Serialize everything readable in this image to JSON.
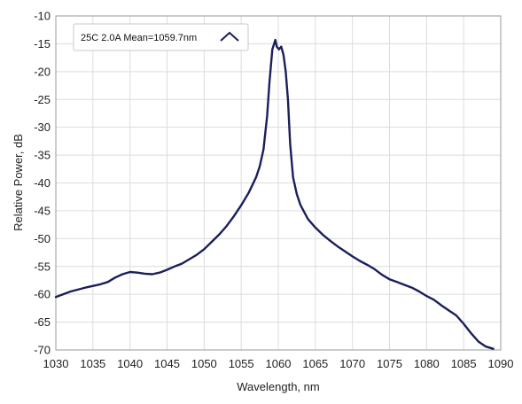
{
  "chart_data": {
    "type": "line",
    "xlabel": "Wavelength, nm",
    "ylabel": "Relative Power, dB",
    "xlim": [
      1030,
      1090
    ],
    "ylim": [
      -70,
      -10
    ],
    "x_ticks": [
      1030,
      1035,
      1040,
      1045,
      1050,
      1055,
      1060,
      1065,
      1070,
      1075,
      1080,
      1085,
      1090
    ],
    "y_ticks": [
      -10,
      -15,
      -20,
      -25,
      -30,
      -35,
      -40,
      -45,
      -50,
      -55,
      -60,
      -65,
      -70
    ],
    "grid": true,
    "legend_position": "top-left",
    "series_color": "#1b1f5a",
    "series": [
      {
        "name": "25C 2.0A Mean=1059.7nm",
        "x": [
          1030,
          1032,
          1034,
          1036,
          1037,
          1038,
          1039,
          1040,
          1041,
          1042,
          1043,
          1044,
          1045,
          1046,
          1047,
          1048,
          1049,
          1050,
          1051,
          1052,
          1053,
          1054,
          1055,
          1056,
          1057,
          1057.5,
          1058,
          1058.5,
          1058.8,
          1059.2,
          1059.6,
          1059.8,
          1060.1,
          1060.4,
          1060.7,
          1061.0,
          1061.3,
          1061.6,
          1062,
          1062.5,
          1063,
          1064,
          1065,
          1066,
          1067,
          1068,
          1069,
          1070,
          1071,
          1072,
          1073,
          1074,
          1075,
          1076,
          1077,
          1078,
          1079,
          1080,
          1081,
          1082,
          1083,
          1084,
          1085,
          1086,
          1087,
          1088,
          1089
        ],
        "values": [
          -60.5,
          -59.5,
          -58.8,
          -58.2,
          -57.8,
          -57.0,
          -56.4,
          -56.0,
          -56.1,
          -56.3,
          -56.4,
          -56.1,
          -55.6,
          -55.0,
          -54.5,
          -53.7,
          -52.9,
          -51.9,
          -50.6,
          -49.3,
          -47.8,
          -46.0,
          -44.0,
          -41.8,
          -39.0,
          -37.0,
          -34.0,
          -28.0,
          -22.0,
          -16.0,
          -14.3,
          -15.5,
          -16.0,
          -15.5,
          -17.0,
          -20.0,
          -25.0,
          -33.0,
          -39.0,
          -42.0,
          -44.0,
          -46.5,
          -48.0,
          -49.3,
          -50.4,
          -51.4,
          -52.3,
          -53.2,
          -54.0,
          -54.7,
          -55.5,
          -56.5,
          -57.3,
          -57.8,
          -58.3,
          -58.8,
          -59.5,
          -60.3,
          -61.0,
          -62.0,
          -62.9,
          -63.8,
          -65.3,
          -67.0,
          -68.5,
          -69.4,
          -69.8
        ]
      }
    ]
  }
}
